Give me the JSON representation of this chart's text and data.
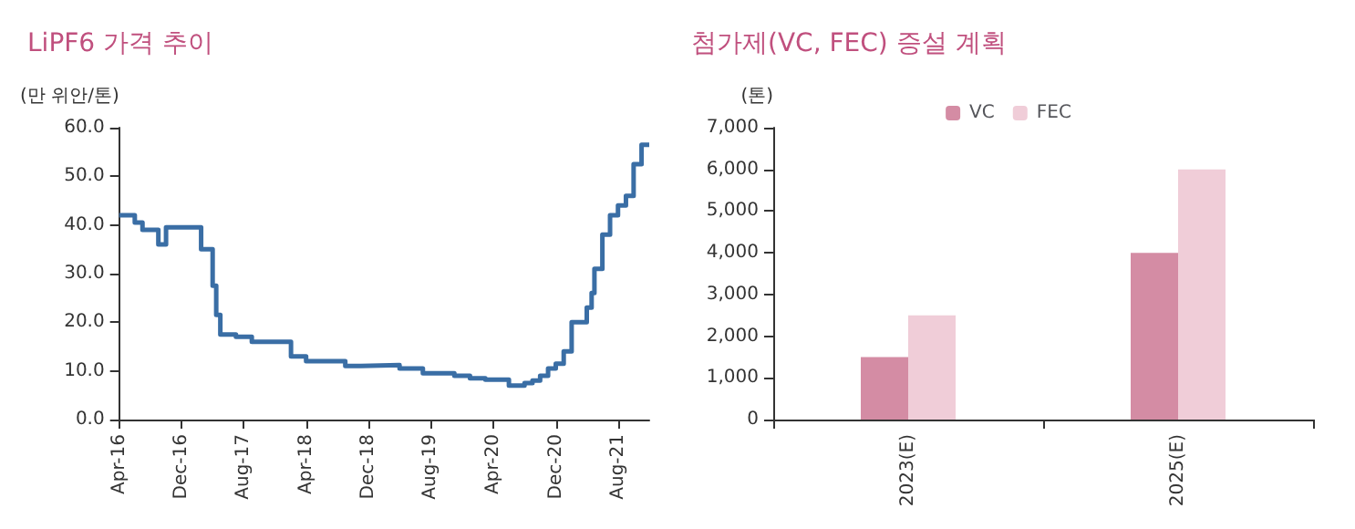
{
  "chart_data": [
    {
      "type": "step",
      "title": "LiPF6 가격 추이",
      "ylabel": "(만 위안/톤)",
      "color": "#3a6ea5",
      "marker": "none",
      "line_style": "solid",
      "grid": false,
      "legend": false,
      "x": [
        "2016-04",
        "2016-06",
        "2016-07",
        "2016-09",
        "2016-10",
        "2017-02-15",
        "2017-04",
        "2017-04-15",
        "2017-05",
        "2017-07",
        "2017-09",
        "2018-02",
        "2018-04",
        "2018-09",
        "2018-11",
        "2019-04",
        "2019-07",
        "2019-11",
        "2020-01",
        "2020-03",
        "2020-06",
        "2020-08",
        "2020-09",
        "2020-10",
        "2020-11",
        "2020-12",
        "2021-01",
        "2021-02",
        "2021-04",
        "2021-04-20",
        "2021-05",
        "2021-06",
        "2021-07",
        "2021-08",
        "2021-09",
        "2021-10",
        "2021-11",
        "2021-12"
      ],
      "values": [
        42,
        40.5,
        39,
        36,
        39.5,
        35,
        27.5,
        21.5,
        17.5,
        17,
        16,
        13,
        12,
        11,
        11.2,
        10.5,
        9.5,
        9,
        8.5,
        8.2,
        7,
        7.5,
        8,
        9,
        10.5,
        11.5,
        14,
        20,
        23,
        26,
        31,
        38,
        42,
        44,
        46,
        52.5,
        56.5,
        56.5
      ],
      "xlim": [
        "2016-04",
        "2021-12"
      ],
      "xticks": [
        {
          "value": "2016-04",
          "label": "Apr-16"
        },
        {
          "value": "2016-12",
          "label": "Dec-16"
        },
        {
          "value": "2017-08",
          "label": "Aug-17"
        },
        {
          "value": "2018-04",
          "label": "Apr-18"
        },
        {
          "value": "2018-12",
          "label": "Dec-18"
        },
        {
          "value": "2019-08",
          "label": "Aug-19"
        },
        {
          "value": "2020-04",
          "label": "Apr-20"
        },
        {
          "value": "2020-12",
          "label": "Dec-20"
        },
        {
          "value": "2021-08",
          "label": "Aug-21"
        }
      ],
      "ylim": [
        0,
        60
      ],
      "yticks": [
        {
          "value": 0,
          "label": "0.0"
        },
        {
          "value": 10,
          "label": "10.0"
        },
        {
          "value": 20,
          "label": "20.0"
        },
        {
          "value": 30,
          "label": "30.0"
        },
        {
          "value": 40,
          "label": "40.0"
        },
        {
          "value": 50,
          "label": "50.0"
        },
        {
          "value": 60,
          "label": "60.0"
        }
      ]
    },
    {
      "type": "bar",
      "title": "첨가제(VC, FEC) 증설 계획",
      "ylabel": "(톤)",
      "grid": false,
      "legend": "top",
      "categories": [
        "2023(E)",
        "2025(E)"
      ],
      "series": [
        {
          "name": "VC",
          "color": "#d48ca4",
          "values": [
            1500,
            4000
          ]
        },
        {
          "name": "FEC",
          "color": "#f0cdd8",
          "values": [
            2500,
            6000
          ]
        }
      ],
      "ylim": [
        0,
        7000
      ],
      "yticks": [
        0,
        {
          "value": 1000,
          "label": "1,000"
        },
        {
          "value": 2000,
          "label": "2,000"
        },
        {
          "value": 3000,
          "label": "3,000"
        },
        {
          "value": 4000,
          "label": "4,000"
        },
        {
          "value": 5000,
          "label": "5,000"
        },
        {
          "value": 6000,
          "label": "6,000"
        },
        {
          "value": 7000,
          "label": "7,000"
        }
      ]
    }
  ]
}
